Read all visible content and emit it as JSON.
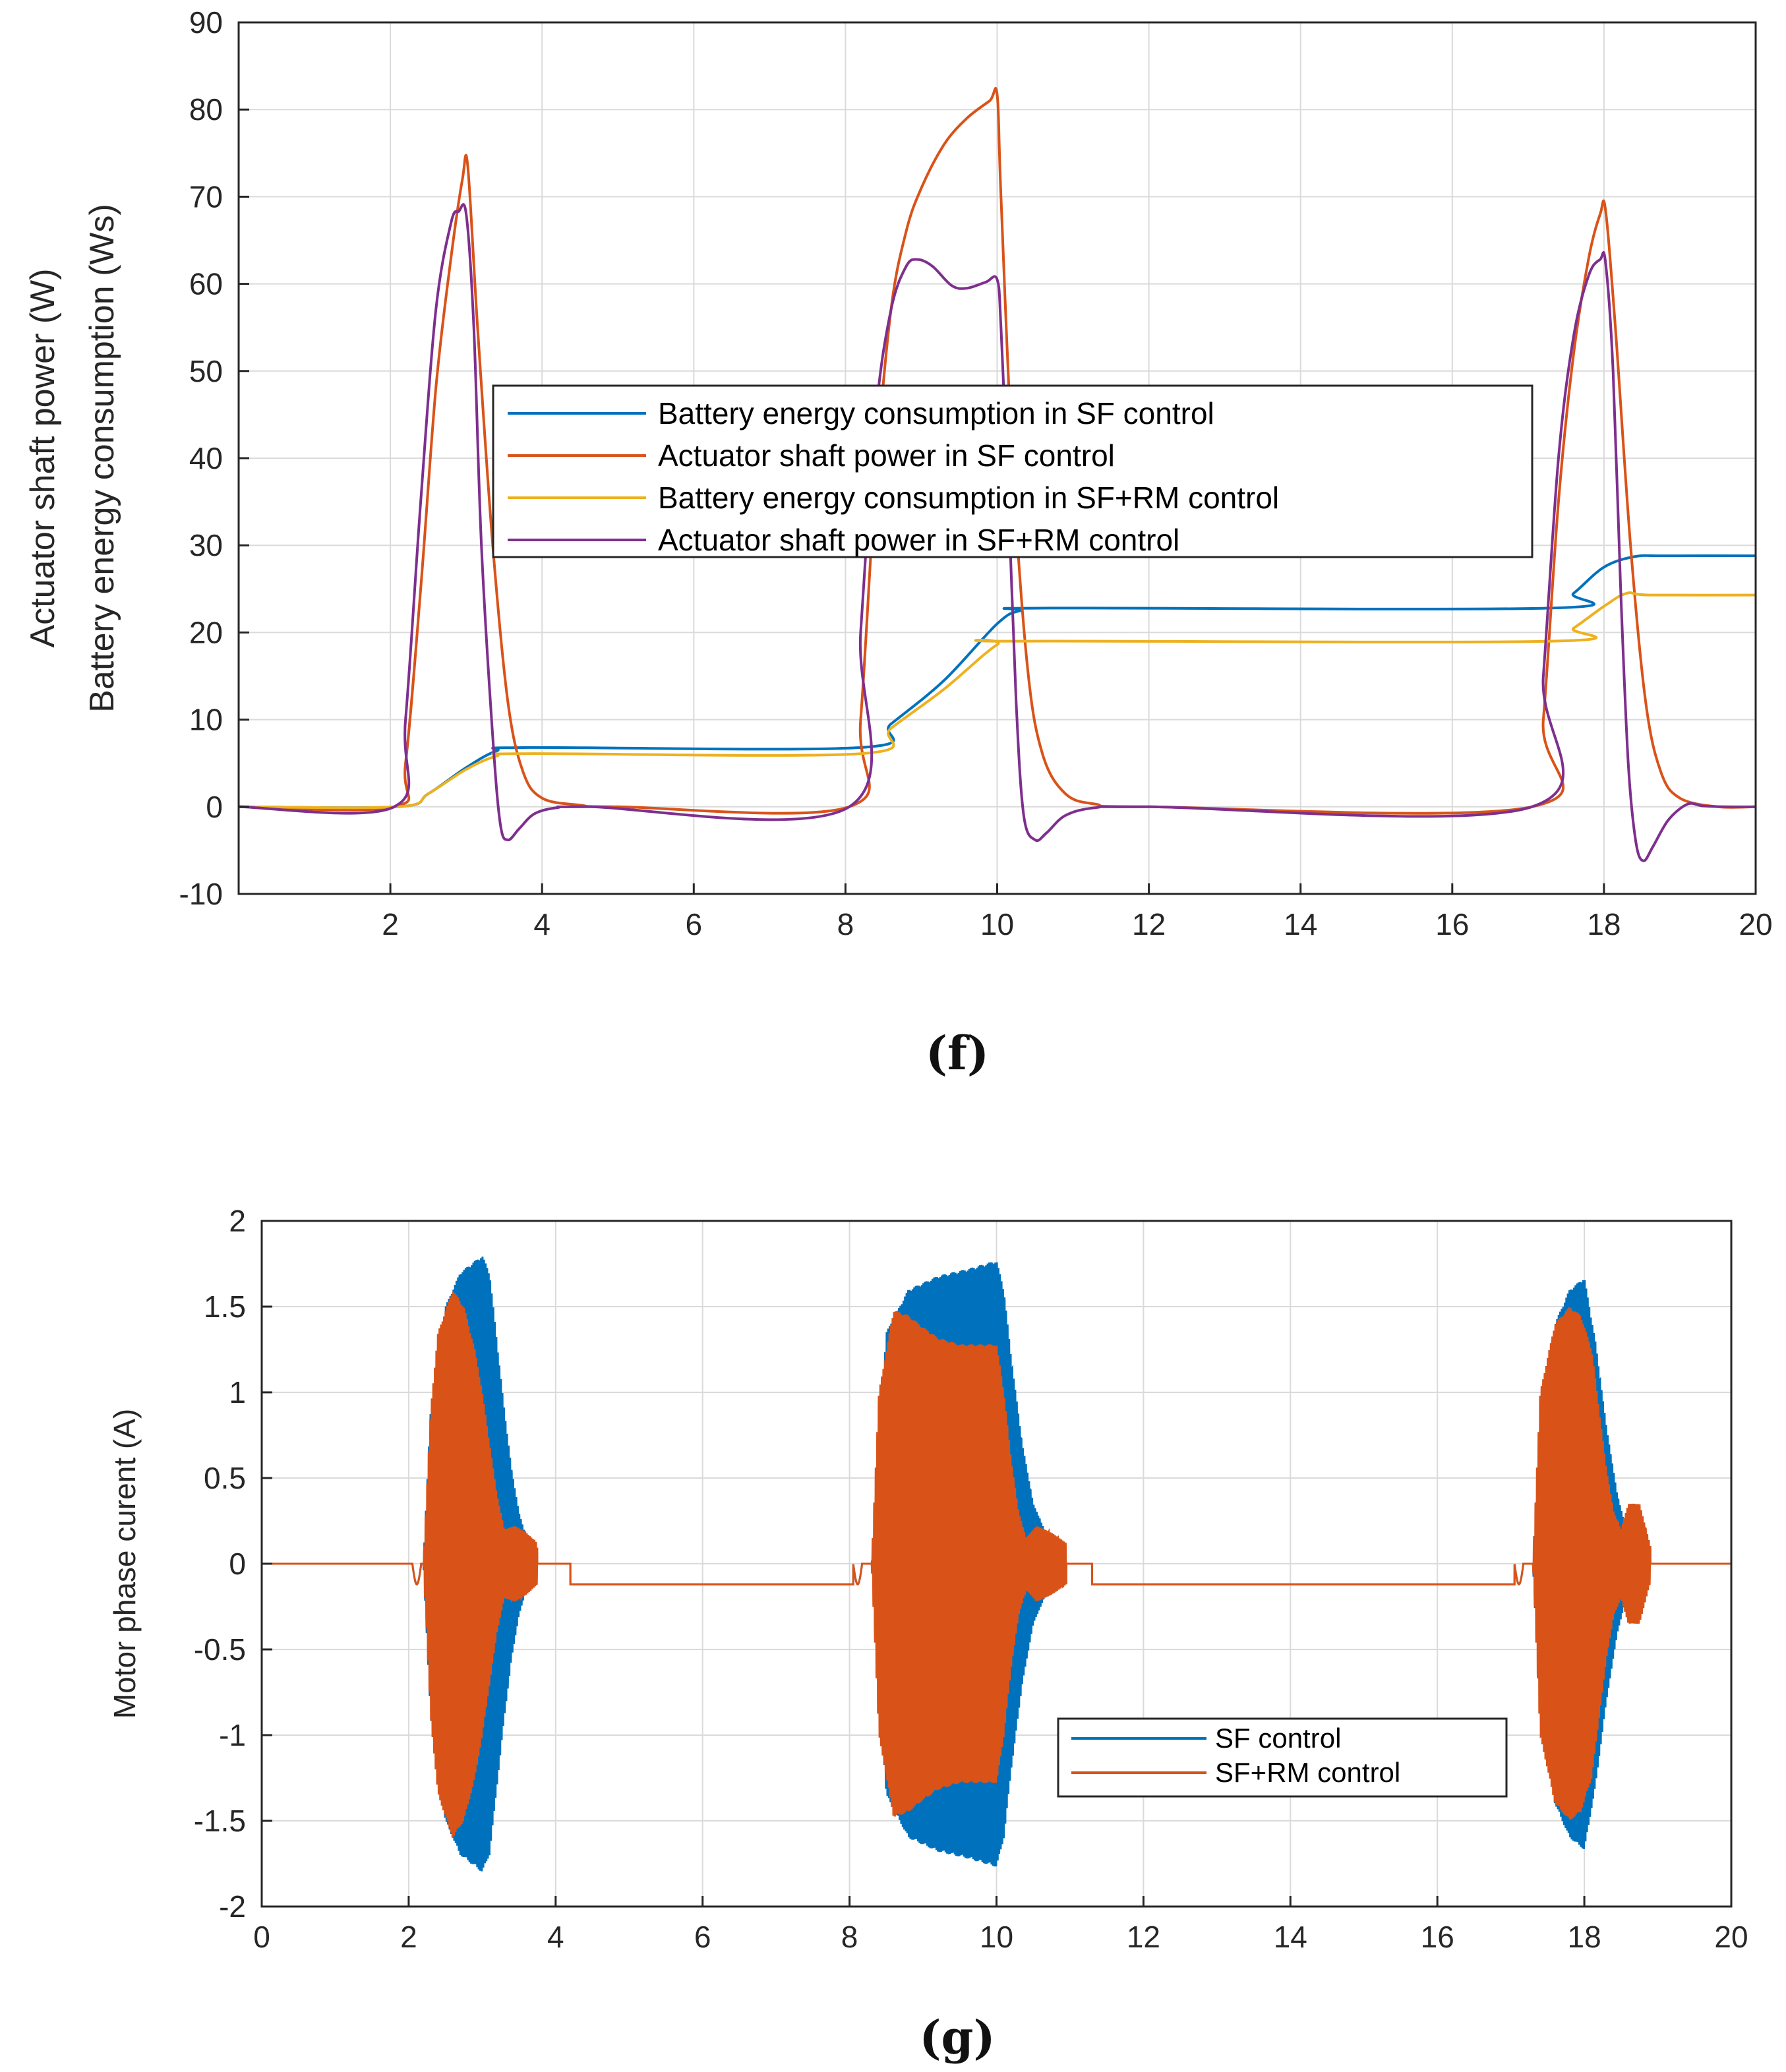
{
  "colors": {
    "blue": "#0072BD",
    "orange": "#D95319",
    "yellow": "#EDB120",
    "purple": "#7E2F8E",
    "grid": "#dadada",
    "axis": "#262626"
  },
  "chart_data": [
    {
      "type": "line",
      "caption": "(f)",
      "ylabel_line1": "Actuator shaft power (W)",
      "ylabel_line2": "Battery energy consumption (Ws)",
      "xlim": [
        0,
        20
      ],
      "ylim": [
        -10,
        90
      ],
      "xticks": [
        2,
        4,
        6,
        8,
        10,
        12,
        14,
        16,
        18,
        20
      ],
      "yticks": [
        -10,
        0,
        10,
        20,
        30,
        40,
        50,
        60,
        70,
        80,
        90
      ],
      "grid": true,
      "legend_position": "center",
      "series": [
        {
          "name": "Battery energy consumption in SF control",
          "color": "blue",
          "points": [
            [
              0,
              0
            ],
            [
              2.1,
              0
            ],
            [
              2.5,
              1.5
            ],
            [
              3.0,
              4.5
            ],
            [
              3.4,
              6.4
            ],
            [
              3.8,
              6.8
            ],
            [
              8.2,
              6.8
            ],
            [
              8.6,
              9.5
            ],
            [
              9.3,
              14.5
            ],
            [
              10.0,
              21
            ],
            [
              10.3,
              22.5
            ],
            [
              10.7,
              22.8
            ],
            [
              17.3,
              22.8
            ],
            [
              17.6,
              24.5
            ],
            [
              18.0,
              27.5
            ],
            [
              18.4,
              28.7
            ],
            [
              18.8,
              28.8
            ],
            [
              20,
              28.8
            ]
          ]
        },
        {
          "name": "Actuator shaft power in SF control",
          "color": "orange",
          "points": [
            [
              0,
              0
            ],
            [
              2.05,
              0
            ],
            [
              2.2,
              5
            ],
            [
              2.4,
              25
            ],
            [
              2.6,
              48
            ],
            [
              2.8,
              63
            ],
            [
              2.95,
              72
            ],
            [
              3.02,
              73.5
            ],
            [
              3.15,
              55
            ],
            [
              3.35,
              30
            ],
            [
              3.55,
              12
            ],
            [
              3.75,
              4
            ],
            [
              4.0,
              1
            ],
            [
              4.5,
              0.2
            ],
            [
              5.0,
              0
            ],
            [
              8.05,
              0
            ],
            [
              8.2,
              10
            ],
            [
              8.4,
              38
            ],
            [
              8.6,
              57
            ],
            [
              8.8,
              66
            ],
            [
              9.0,
              71
            ],
            [
              9.3,
              76
            ],
            [
              9.6,
              79
            ],
            [
              9.9,
              81
            ],
            [
              10.0,
              81.7
            ],
            [
              10.05,
              70
            ],
            [
              10.2,
              40
            ],
            [
              10.4,
              16
            ],
            [
              10.6,
              6
            ],
            [
              10.9,
              1.5
            ],
            [
              11.3,
              0.3
            ],
            [
              12,
              0
            ],
            [
              17.05,
              0
            ],
            [
              17.2,
              10
            ],
            [
              17.4,
              35
            ],
            [
              17.6,
              52
            ],
            [
              17.8,
              63
            ],
            [
              17.95,
              68
            ],
            [
              18.02,
              68.5
            ],
            [
              18.15,
              55
            ],
            [
              18.35,
              30
            ],
            [
              18.55,
              12
            ],
            [
              18.75,
              4
            ],
            [
              19.0,
              1
            ],
            [
              19.5,
              0
            ],
            [
              20,
              0
            ]
          ]
        },
        {
          "name": "Battery energy consumption in SF+RM control",
          "color": "yellow",
          "points": [
            [
              0,
              0
            ],
            [
              2.1,
              0
            ],
            [
              2.5,
              1.5
            ],
            [
              3.0,
              4.3
            ],
            [
              3.4,
              5.8
            ],
            [
              3.8,
              6.1
            ],
            [
              8.2,
              6.1
            ],
            [
              8.6,
              9.0
            ],
            [
              9.3,
              13.5
            ],
            [
              10.0,
              18.6
            ],
            [
              10.3,
              19.0
            ],
            [
              17.3,
              19.0
            ],
            [
              17.6,
              20.5
            ],
            [
              18.0,
              23.0
            ],
            [
              18.3,
              24.5
            ],
            [
              18.6,
              24.3
            ],
            [
              20,
              24.3
            ]
          ]
        },
        {
          "name": "Actuator shaft power in SF+RM control",
          "color": "purple",
          "points": [
            [
              0,
              0
            ],
            [
              2.05,
              0
            ],
            [
              2.2,
              10
            ],
            [
              2.4,
              35
            ],
            [
              2.6,
              57
            ],
            [
              2.8,
              67
            ],
            [
              2.9,
              68.3
            ],
            [
              3.0,
              68
            ],
            [
              3.1,
              55
            ],
            [
              3.2,
              30
            ],
            [
              3.35,
              8
            ],
            [
              3.45,
              -2
            ],
            [
              3.55,
              -3.8
            ],
            [
              3.7,
              -2.5
            ],
            [
              3.9,
              -0.8
            ],
            [
              4.2,
              -0.1
            ],
            [
              4.6,
              0
            ],
            [
              8.05,
              0
            ],
            [
              8.2,
              20
            ],
            [
              8.4,
              45
            ],
            [
              8.6,
              57
            ],
            [
              8.8,
              62
            ],
            [
              8.95,
              62.8
            ],
            [
              9.15,
              62
            ],
            [
              9.4,
              59.8
            ],
            [
              9.6,
              59.5
            ],
            [
              9.85,
              60.2
            ],
            [
              10.0,
              60.5
            ],
            [
              10.05,
              55
            ],
            [
              10.15,
              35
            ],
            [
              10.25,
              12
            ],
            [
              10.35,
              -1
            ],
            [
              10.5,
              -3.8
            ],
            [
              10.65,
              -3
            ],
            [
              10.9,
              -1
            ],
            [
              11.3,
              -0.1
            ],
            [
              12,
              0
            ],
            [
              17.05,
              0
            ],
            [
              17.2,
              15
            ],
            [
              17.4,
              40
            ],
            [
              17.6,
              54
            ],
            [
              17.8,
              61
            ],
            [
              17.95,
              62.8
            ],
            [
              18.02,
              62.5
            ],
            [
              18.12,
              50
            ],
            [
              18.22,
              25
            ],
            [
              18.32,
              5
            ],
            [
              18.42,
              -4
            ],
            [
              18.52,
              -6.2
            ],
            [
              18.65,
              -4.5
            ],
            [
              18.85,
              -1.5
            ],
            [
              19.1,
              0.3
            ],
            [
              19.3,
              0.1
            ],
            [
              19.6,
              0
            ],
            [
              20,
              0
            ]
          ]
        }
      ]
    },
    {
      "type": "line",
      "caption": "(g)",
      "ylabel": "Motor phase curent (A)",
      "xlim": [
        0,
        20
      ],
      "ylim": [
        -2,
        2
      ],
      "xticks": [
        0,
        2,
        4,
        6,
        8,
        10,
        12,
        14,
        16,
        18,
        20
      ],
      "yticks": [
        -2,
        -1.5,
        -1,
        -0.5,
        0,
        0.5,
        1,
        1.5,
        2
      ],
      "grid": true,
      "legend_position": "lower-right",
      "series": [
        {
          "name": "SF control",
          "color": "blue",
          "envelope": [
            [
              2.2,
              0
            ],
            [
              2.3,
              0.9
            ],
            [
              2.5,
              1.5
            ],
            [
              2.7,
              1.7
            ],
            [
              3.0,
              1.8
            ],
            [
              3.1,
              1.7
            ],
            [
              3.2,
              1.3
            ],
            [
              3.3,
              0.9
            ],
            [
              3.4,
              0.55
            ],
            [
              3.5,
              0.3
            ],
            [
              3.6,
              0.15
            ],
            [
              3.7,
              0.1
            ],
            [
              8.3,
              0
            ],
            [
              8.5,
              1.35
            ],
            [
              8.8,
              1.6
            ],
            [
              9.2,
              1.68
            ],
            [
              9.6,
              1.72
            ],
            [
              10.0,
              1.77
            ],
            [
              10.1,
              1.6
            ],
            [
              10.2,
              1.2
            ],
            [
              10.35,
              0.7
            ],
            [
              10.5,
              0.35
            ],
            [
              10.7,
              0.15
            ],
            [
              10.9,
              0.08
            ],
            [
              17.3,
              0
            ],
            [
              17.4,
              0.9
            ],
            [
              17.6,
              1.4
            ],
            [
              17.8,
              1.6
            ],
            [
              18.0,
              1.67
            ],
            [
              18.15,
              1.3
            ],
            [
              18.3,
              0.8
            ],
            [
              18.45,
              0.4
            ],
            [
              18.6,
              0.15
            ],
            [
              18.8,
              0.04
            ]
          ]
        },
        {
          "name": "SF+RM control",
          "color": "orange",
          "envelope": [
            [
              2.2,
              0
            ],
            [
              2.3,
              0.9
            ],
            [
              2.4,
              1.35
            ],
            [
              2.6,
              1.6
            ],
            [
              2.75,
              1.5
            ],
            [
              2.9,
              1.25
            ],
            [
              3.0,
              1.0
            ],
            [
              3.1,
              0.7
            ],
            [
              3.2,
              0.4
            ],
            [
              3.3,
              0.2
            ],
            [
              3.45,
              0.22
            ],
            [
              3.6,
              0.18
            ],
            [
              3.75,
              0.12
            ],
            [
              8.3,
              0
            ],
            [
              8.4,
              1.0
            ],
            [
              8.6,
              1.48
            ],
            [
              8.8,
              1.45
            ],
            [
              9.0,
              1.38
            ],
            [
              9.2,
              1.32
            ],
            [
              9.5,
              1.28
            ],
            [
              10.0,
              1.28
            ],
            [
              10.1,
              1.0
            ],
            [
              10.2,
              0.6
            ],
            [
              10.3,
              0.3
            ],
            [
              10.4,
              0.15
            ],
            [
              10.55,
              0.22
            ],
            [
              10.75,
              0.18
            ],
            [
              10.95,
              0.12
            ],
            [
              17.3,
              0
            ],
            [
              17.4,
              1.0
            ],
            [
              17.6,
              1.4
            ],
            [
              17.8,
              1.5
            ],
            [
              17.95,
              1.45
            ],
            [
              18.1,
              1.25
            ],
            [
              18.2,
              0.9
            ],
            [
              18.3,
              0.55
            ],
            [
              18.4,
              0.3
            ],
            [
              18.5,
              0.2
            ],
            [
              18.6,
              0.35
            ],
            [
              18.75,
              0.35
            ],
            [
              18.9,
              0.1
            ]
          ]
        }
      ]
    }
  ]
}
